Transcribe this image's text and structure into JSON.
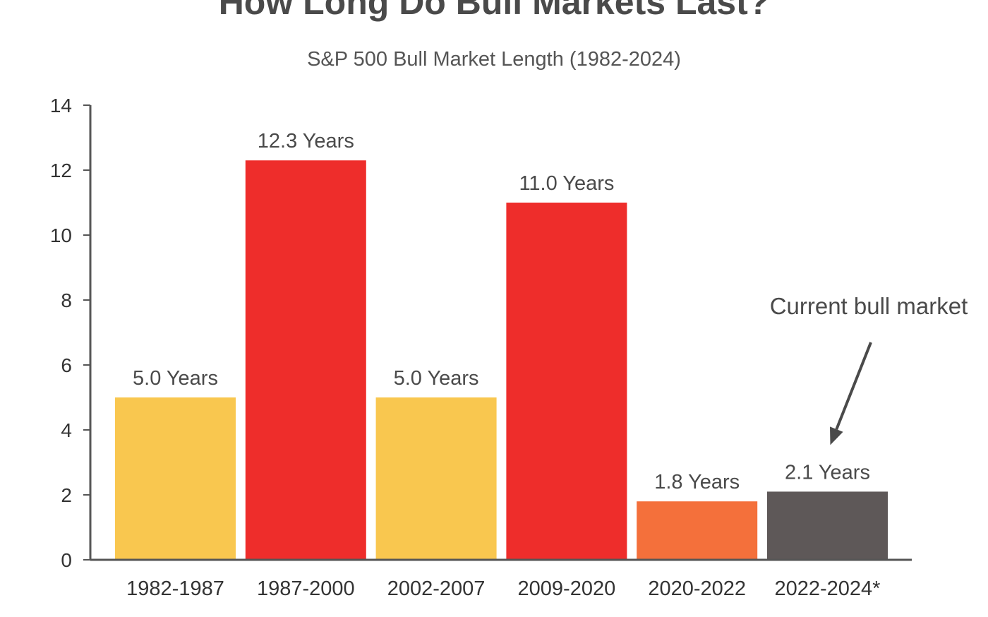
{
  "chart_data": {
    "type": "bar",
    "title": "How Long Do Bull Markets Last?",
    "subtitle": "S&P 500 Bull Market Length (1982-2024)",
    "xlabel": "",
    "ylabel": "",
    "ylim": [
      0,
      14
    ],
    "yticks": [
      0,
      2,
      4,
      6,
      8,
      10,
      12,
      14
    ],
    "grid": false,
    "categories": [
      "1982-1987",
      "1987-2000",
      "2002-2007",
      "2009-2020",
      "2020-2022",
      "2022-2024*"
    ],
    "values": [
      5.0,
      12.3,
      5.0,
      11.0,
      1.8,
      2.1
    ],
    "data_labels": [
      "5.0 Years",
      "12.3 Years",
      "5.0 Years",
      "11.0 Years",
      "1.8 Years",
      "2.1 Years"
    ],
    "colors": [
      "#f9c74f",
      "#ee2d2b",
      "#f9c74f",
      "#ee2d2b",
      "#f4703b",
      "#5e5858"
    ],
    "annotation": {
      "text": "Current bull market",
      "target_category": "2022-2024*"
    }
  },
  "colors": {
    "axis": "#555555",
    "arrow": "#4a4a4a"
  }
}
